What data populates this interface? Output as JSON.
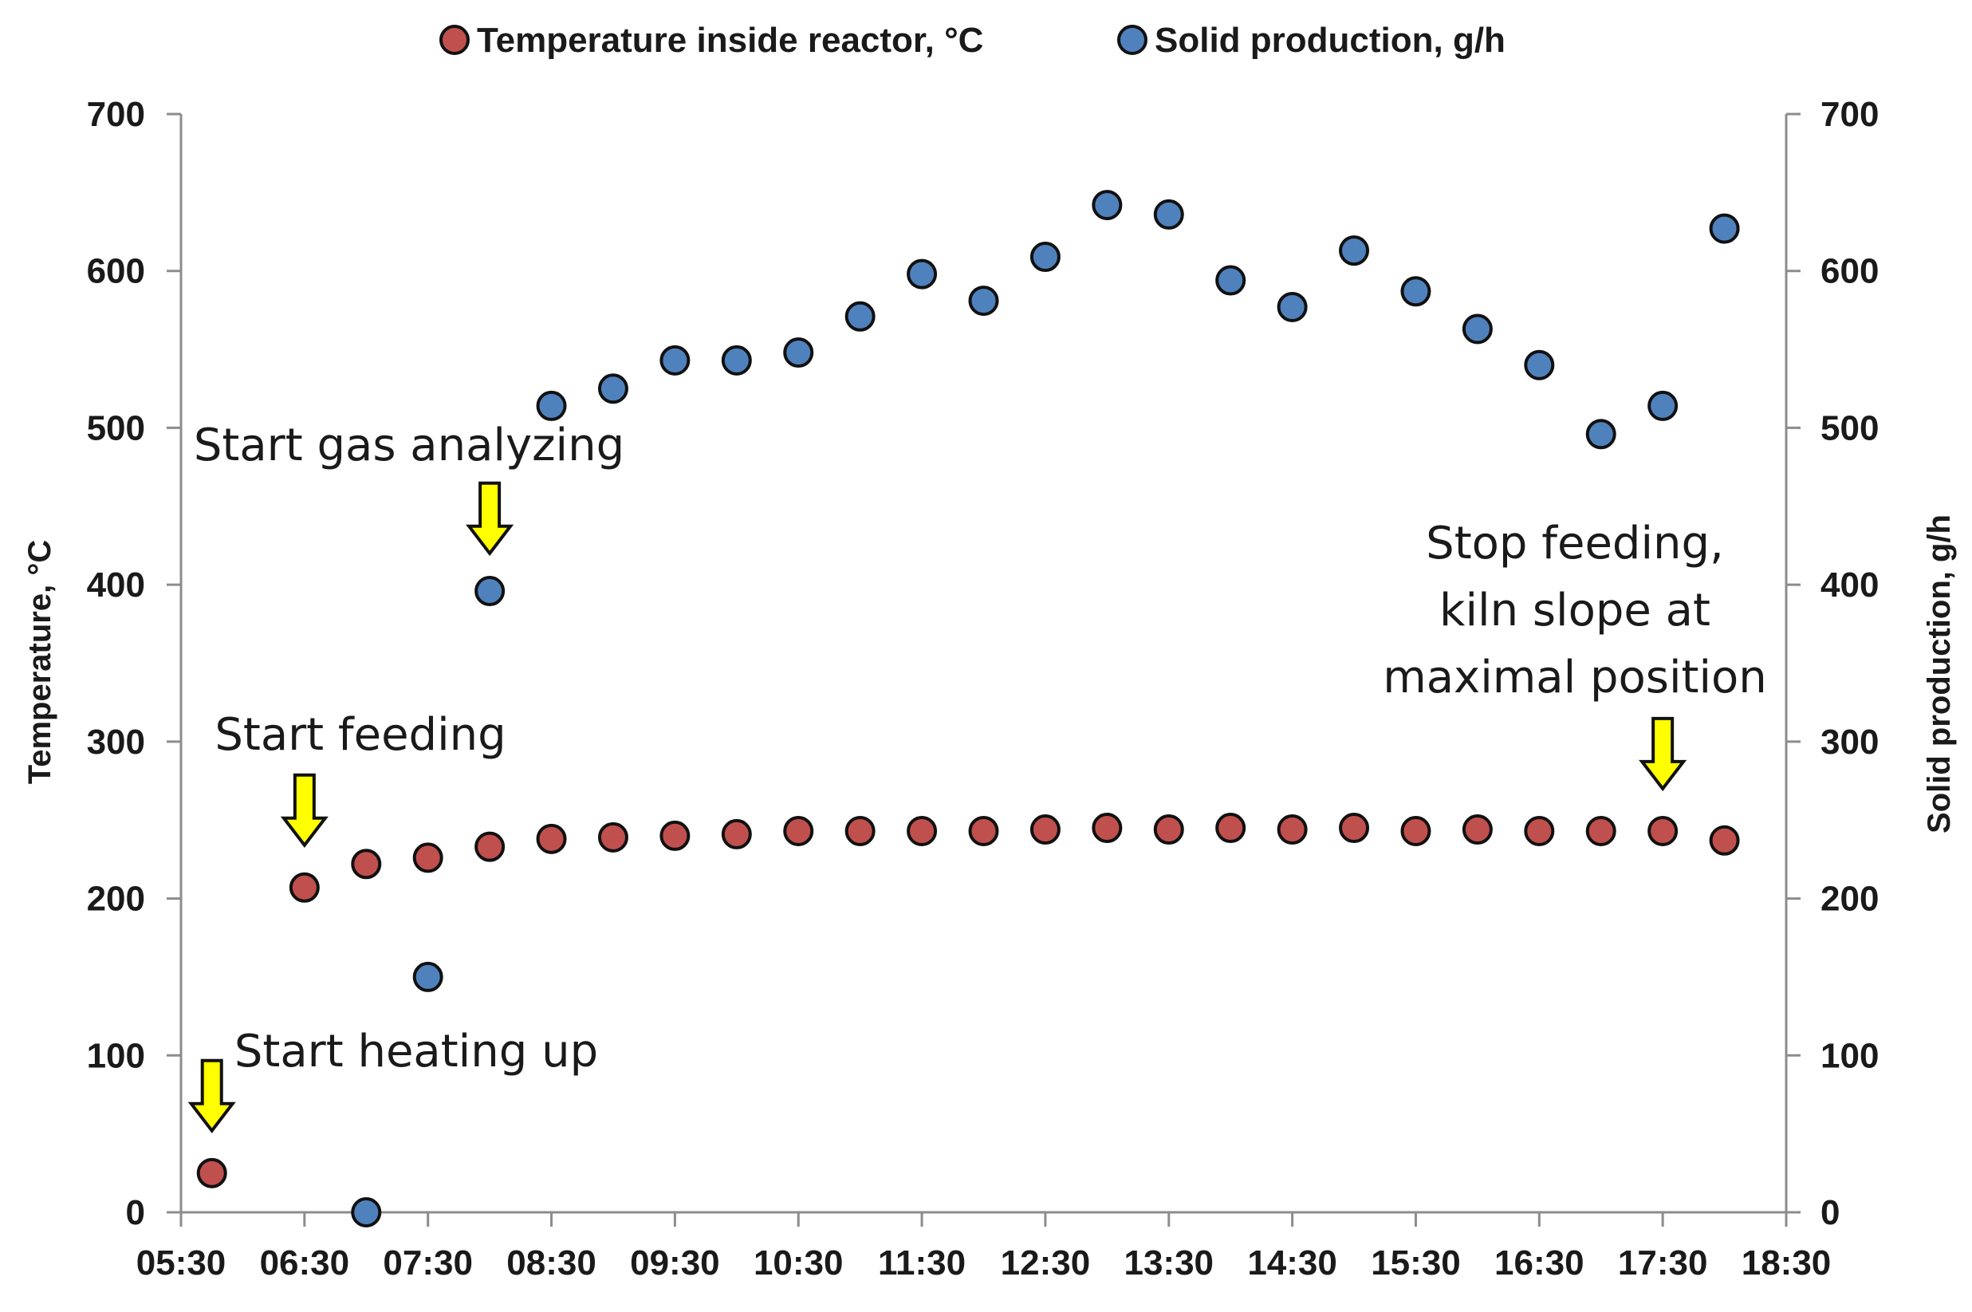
{
  "chart_data": {
    "type": "scatter",
    "title": "",
    "xlabel": "",
    "ylabel": "Temperature, °C",
    "y2label": "Solid production, g/h",
    "x_ticks": [
      "05:30",
      "06:30",
      "07:30",
      "08:30",
      "09:30",
      "10:30",
      "11:30",
      "12:30",
      "13:30",
      "14:30",
      "15:30",
      "16:30",
      "17:30",
      "18:30"
    ],
    "x_domain_hours": [
      5.5,
      18.5
    ],
    "ylim": [
      0,
      700
    ],
    "y2lim": [
      0,
      700
    ],
    "y_ticks": [
      0,
      100,
      200,
      300,
      400,
      500,
      600,
      700
    ],
    "grid": false,
    "legend_position": "top",
    "series": [
      {
        "name": "Temperature inside reactor, °C",
        "axis": "left",
        "color": "#c0504d",
        "points": [
          {
            "t": "05:45",
            "y": 25
          },
          {
            "t": "06:30",
            "y": 207
          },
          {
            "t": "07:00",
            "y": 222
          },
          {
            "t": "07:30",
            "y": 226
          },
          {
            "t": "08:00",
            "y": 233
          },
          {
            "t": "08:30",
            "y": 238
          },
          {
            "t": "09:00",
            "y": 239
          },
          {
            "t": "09:30",
            "y": 240
          },
          {
            "t": "10:00",
            "y": 241
          },
          {
            "t": "10:30",
            "y": 243
          },
          {
            "t": "11:00",
            "y": 243
          },
          {
            "t": "11:30",
            "y": 243
          },
          {
            "t": "12:00",
            "y": 243
          },
          {
            "t": "12:30",
            "y": 244
          },
          {
            "t": "13:00",
            "y": 245
          },
          {
            "t": "13:30",
            "y": 244
          },
          {
            "t": "14:00",
            "y": 245
          },
          {
            "t": "14:30",
            "y": 244
          },
          {
            "t": "15:00",
            "y": 245
          },
          {
            "t": "15:30",
            "y": 243
          },
          {
            "t": "16:00",
            "y": 244
          },
          {
            "t": "16:30",
            "y": 243
          },
          {
            "t": "17:00",
            "y": 243
          },
          {
            "t": "17:30",
            "y": 243
          },
          {
            "t": "18:00",
            "y": 237
          }
        ]
      },
      {
        "name": "Solid production, g/h",
        "axis": "right",
        "color": "#4f81bd",
        "points": [
          {
            "t": "07:00",
            "y": 0
          },
          {
            "t": "07:30",
            "y": 150
          },
          {
            "t": "08:00",
            "y": 396
          },
          {
            "t": "08:30",
            "y": 514
          },
          {
            "t": "09:00",
            "y": 525
          },
          {
            "t": "09:30",
            "y": 543
          },
          {
            "t": "10:00",
            "y": 543
          },
          {
            "t": "10:30",
            "y": 548
          },
          {
            "t": "11:00",
            "y": 571
          },
          {
            "t": "11:30",
            "y": 598
          },
          {
            "t": "12:00",
            "y": 581
          },
          {
            "t": "12:30",
            "y": 609
          },
          {
            "t": "13:00",
            "y": 642
          },
          {
            "t": "13:30",
            "y": 636
          },
          {
            "t": "14:00",
            "y": 594
          },
          {
            "t": "14:30",
            "y": 577
          },
          {
            "t": "15:00",
            "y": 613
          },
          {
            "t": "15:30",
            "y": 587
          },
          {
            "t": "16:00",
            "y": 563
          },
          {
            "t": "16:30",
            "y": 540
          },
          {
            "t": "17:00",
            "y": 496
          },
          {
            "t": "17:30",
            "y": 514
          },
          {
            "t": "18:00",
            "y": 627
          }
        ]
      }
    ],
    "annotations": [
      {
        "lines": [
          "Start heating up"
        ],
        "arrow_t": "05:45",
        "arrow_y": 52
      },
      {
        "lines": [
          "Start feeding"
        ],
        "arrow_t": "06:30",
        "arrow_y": 234
      },
      {
        "lines": [
          "Start gas analyzing"
        ],
        "arrow_t": "08:00",
        "arrow_y": 420
      },
      {
        "lines": [
          "Stop feeding,",
          "kiln slope at",
          "maximal position"
        ],
        "arrow_t": "17:30",
        "arrow_y": 270
      }
    ]
  }
}
